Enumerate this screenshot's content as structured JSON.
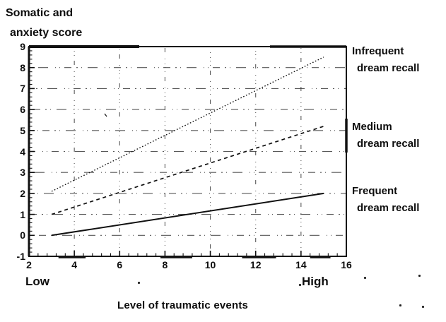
{
  "chart_data": {
    "type": "line",
    "title": "",
    "ylabel_lines": [
      "Somatic and",
      "anxiety score"
    ],
    "xlabel": "Level of traumatic events",
    "x_end_labels": {
      "low": "Low",
      "high": "High"
    },
    "xlim": [
      2,
      16
    ],
    "ylim": [
      -1,
      9
    ],
    "x_ticks": [
      2,
      4,
      6,
      8,
      10,
      12,
      14,
      16
    ],
    "y_ticks": [
      -1,
      0,
      1,
      2,
      3,
      4,
      5,
      6,
      7,
      8,
      9
    ],
    "x_minor_step": 0.4,
    "y_minor_step": 0.2,
    "grid": {
      "vertical_at_x": [
        4,
        6,
        8,
        10,
        12,
        14
      ],
      "horizontal_at_y": [
        0,
        1,
        2,
        3,
        4,
        5,
        6,
        7,
        8
      ],
      "style": "sparse-dotted"
    },
    "series": [
      {
        "name": "Infrequent dream recall",
        "label_line1": "Infrequent",
        "label_line2": "dream recall",
        "style": "dotted",
        "x": [
          3,
          15
        ],
        "y": [
          2.1,
          8.5
        ]
      },
      {
        "name": "Medium dream recall",
        "label_line1": "Medium",
        "label_line2": "dream recall",
        "style": "dashed",
        "x": [
          3,
          15
        ],
        "y": [
          1.0,
          5.2
        ]
      },
      {
        "name": "Frequent dream recall",
        "label_line1": "Frequent",
        "label_line2": "dream recall",
        "style": "solid",
        "x": [
          3,
          15
        ],
        "y": [
          0.0,
          2.0
        ]
      }
    ],
    "ink_color": "#111111",
    "background_color": "#ffffff"
  }
}
